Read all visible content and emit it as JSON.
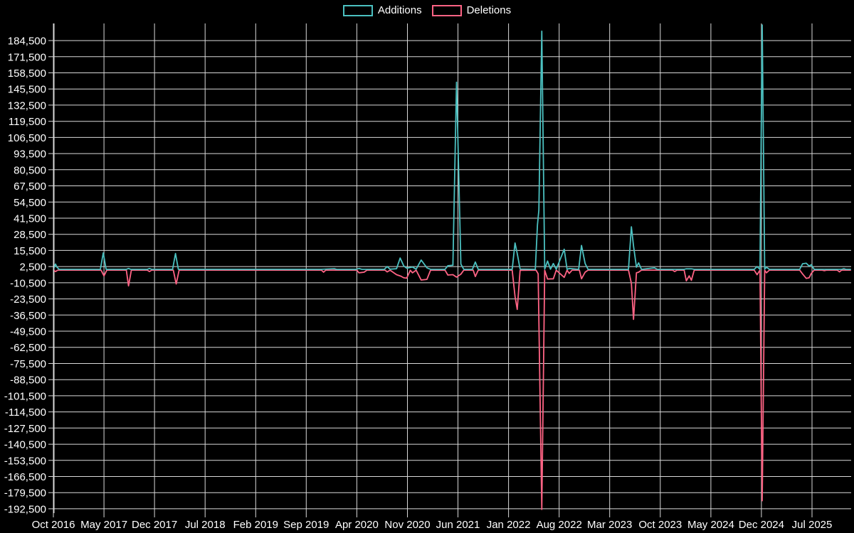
{
  "legend": {
    "items": [
      {
        "label": "Additions",
        "color": "#4bc0c0"
      },
      {
        "label": "Deletions",
        "color": "#ff6384"
      }
    ]
  },
  "chart_data": {
    "type": "line",
    "title": "",
    "xlabel": "",
    "ylabel": "",
    "background_color": "#000000",
    "grid_color": "#d9d9d9",
    "text_color": "#ffffff",
    "legend_position": "top-center",
    "grid": true,
    "x_axis": {
      "tick_labels": [
        "Oct 2016",
        "May 2017",
        "Dec 2017",
        "Jul 2018",
        "Feb 2019",
        "Sep 2019",
        "Apr 2020",
        "Nov 2020",
        "Jun 2021",
        "Jan 2022",
        "Aug 2022",
        "Mar 2023",
        "Oct 2023",
        "May 2024",
        "Dec 2024",
        "Jul 2025"
      ],
      "months_between_ticks": 7,
      "start_month": "Oct 2016",
      "total_months_shown": 110.4
    },
    "y_axis": {
      "tick_labels": [
        "184,500",
        "171,500",
        "158,500",
        "145,500",
        "132,500",
        "119,500",
        "106,500",
        "93,500",
        "80,500",
        "67,500",
        "54,500",
        "41,500",
        "28,500",
        "15,500",
        "2,500",
        "-10,500",
        "-23,500",
        "-36,500",
        "-49,500",
        "-62,500",
        "-75,500",
        "-88,500",
        "-101,500",
        "-114,500",
        "-127,500",
        "-140,500",
        "-153,500",
        "-166,500",
        "-179,500",
        "-192,500"
      ],
      "tick_step": 13000,
      "max_tick": 184500,
      "min_tick": -192500
    },
    "series": [
      {
        "name": "Additions",
        "color": "#4bc0c0",
        "points_format": "[months_since_oct_2016, lines_added]",
        "points": [
          [
            0,
            300
          ],
          [
            0.3,
            4500
          ],
          [
            0.5,
            2000
          ],
          [
            0.8,
            300
          ],
          [
            6.5,
            300
          ],
          [
            6.9,
            13500
          ],
          [
            7.3,
            300
          ],
          [
            10.1,
            300
          ],
          [
            10.4,
            1000
          ],
          [
            10.7,
            300
          ],
          [
            13.0,
            300
          ],
          [
            13.3,
            1000
          ],
          [
            13.6,
            300
          ],
          [
            16.5,
            300
          ],
          [
            16.9,
            13000
          ],
          [
            17.3,
            300
          ],
          [
            37.0,
            300
          ],
          [
            38.9,
            800
          ],
          [
            39.2,
            300
          ],
          [
            41.9,
            300
          ],
          [
            42.3,
            1000
          ],
          [
            42.7,
            300
          ],
          [
            45.8,
            300
          ],
          [
            46.2,
            2500
          ],
          [
            46.6,
            400
          ],
          [
            47.5,
            800
          ],
          [
            48.0,
            9400
          ],
          [
            48.5,
            3000
          ],
          [
            48.9,
            1200
          ],
          [
            49.7,
            2200
          ],
          [
            50.2,
            400
          ],
          [
            50.9,
            7800
          ],
          [
            51.7,
            1500
          ],
          [
            52.2,
            300
          ],
          [
            54.2,
            300
          ],
          [
            54.6,
            3200
          ],
          [
            55.3,
            3600
          ],
          [
            55.8,
            151000
          ],
          [
            56.4,
            4500
          ],
          [
            56.8,
            300
          ],
          [
            58.0,
            300
          ],
          [
            58.4,
            6200
          ],
          [
            58.8,
            300
          ],
          [
            63.5,
            300
          ],
          [
            63.9,
            21500
          ],
          [
            64.2,
            13000
          ],
          [
            64.6,
            500
          ],
          [
            66.7,
            300
          ],
          [
            67.0,
            36000
          ],
          [
            67.2,
            48000
          ],
          [
            67.6,
            192000
          ],
          [
            68.0,
            500
          ],
          [
            68.4,
            7000
          ],
          [
            68.8,
            400
          ],
          [
            69.2,
            5000
          ],
          [
            69.6,
            300
          ],
          [
            70.7,
            16500
          ],
          [
            71.1,
            300
          ],
          [
            71.4,
            1000
          ],
          [
            72.7,
            300
          ],
          [
            73.1,
            19500
          ],
          [
            73.6,
            5000
          ],
          [
            74.0,
            300
          ],
          [
            79.6,
            300
          ],
          [
            80.0,
            34500
          ],
          [
            80.3,
            19000
          ],
          [
            80.7,
            2000
          ],
          [
            81.0,
            5500
          ],
          [
            81.4,
            300
          ],
          [
            83.2,
            1500
          ],
          [
            83.6,
            300
          ],
          [
            87.3,
            300
          ],
          [
            87.6,
            700
          ],
          [
            88.3,
            700
          ],
          [
            88.7,
            300
          ],
          [
            97.0,
            300
          ],
          [
            97.4,
            2500
          ],
          [
            97.8,
            300
          ],
          [
            98.1,
            197000
          ],
          [
            98.45,
            400
          ],
          [
            98.7,
            2000
          ],
          [
            99.1,
            300
          ],
          [
            103.3,
            300
          ],
          [
            103.7,
            4800
          ],
          [
            104.2,
            5200
          ],
          [
            104.6,
            3000
          ],
          [
            104.9,
            4000
          ],
          [
            105.3,
            300
          ],
          [
            109.1,
            300
          ],
          [
            109.4,
            800
          ],
          [
            109.7,
            300
          ],
          [
            110.4,
            300
          ]
        ]
      },
      {
        "name": "Deletions",
        "color": "#ff6384",
        "points_format": "[months_since_oct_2016, lines_deleted_negative]",
        "points": [
          [
            0,
            -350
          ],
          [
            0.3,
            -1500
          ],
          [
            0.6,
            -350
          ],
          [
            6.6,
            -350
          ],
          [
            7.0,
            -5000
          ],
          [
            7.4,
            -350
          ],
          [
            10.1,
            -350
          ],
          [
            10.4,
            -13000
          ],
          [
            10.8,
            -350
          ],
          [
            13.0,
            -350
          ],
          [
            13.3,
            -1500
          ],
          [
            13.6,
            -350
          ],
          [
            16.6,
            -350
          ],
          [
            17.0,
            -11500
          ],
          [
            17.4,
            -350
          ],
          [
            37.1,
            -350
          ],
          [
            37.4,
            -2000
          ],
          [
            37.7,
            -350
          ],
          [
            42.0,
            -350
          ],
          [
            42.3,
            -2500
          ],
          [
            43.0,
            -2000
          ],
          [
            43.4,
            -350
          ],
          [
            45.9,
            -350
          ],
          [
            46.2,
            -1800
          ],
          [
            46.6,
            -400
          ],
          [
            47.5,
            -4000
          ],
          [
            48.1,
            -5200
          ],
          [
            48.5,
            -6500
          ],
          [
            48.9,
            -6800
          ],
          [
            49.4,
            -500
          ],
          [
            49.7,
            -2500
          ],
          [
            50.2,
            -400
          ],
          [
            50.9,
            -8300
          ],
          [
            51.7,
            -7800
          ],
          [
            52.2,
            -400
          ],
          [
            54.2,
            -350
          ],
          [
            54.6,
            -4300
          ],
          [
            55.3,
            -4000
          ],
          [
            55.8,
            -6000
          ],
          [
            56.4,
            -3600
          ],
          [
            56.8,
            -350
          ],
          [
            58.1,
            -350
          ],
          [
            58.4,
            -5500
          ],
          [
            58.8,
            -350
          ],
          [
            63.5,
            -350
          ],
          [
            63.9,
            -21500
          ],
          [
            64.2,
            -32000
          ],
          [
            64.6,
            -500
          ],
          [
            66.8,
            -350
          ],
          [
            67.1,
            -3300
          ],
          [
            67.6,
            -193000
          ],
          [
            68.0,
            -500
          ],
          [
            68.4,
            -7500
          ],
          [
            69.2,
            -7300
          ],
          [
            69.6,
            -400
          ],
          [
            70.7,
            -6200
          ],
          [
            71.1,
            -400
          ],
          [
            71.4,
            -3000
          ],
          [
            71.8,
            -350
          ],
          [
            72.8,
            -350
          ],
          [
            73.1,
            -7300
          ],
          [
            73.6,
            -2000
          ],
          [
            74.0,
            -350
          ],
          [
            79.6,
            -350
          ],
          [
            80.0,
            -11000
          ],
          [
            80.3,
            -40000
          ],
          [
            80.7,
            -2500
          ],
          [
            81.0,
            -2000
          ],
          [
            81.4,
            -350
          ],
          [
            85.7,
            -350
          ],
          [
            86.0,
            -1500
          ],
          [
            86.3,
            -350
          ],
          [
            87.3,
            -350
          ],
          [
            87.6,
            -9000
          ],
          [
            88.0,
            -5000
          ],
          [
            88.3,
            -8500
          ],
          [
            88.7,
            -350
          ],
          [
            97.0,
            -350
          ],
          [
            97.4,
            -4000
          ],
          [
            97.8,
            -350
          ],
          [
            98.1,
            -186000
          ],
          [
            98.45,
            -400
          ],
          [
            98.7,
            -2500
          ],
          [
            99.1,
            -350
          ],
          [
            103.3,
            -350
          ],
          [
            103.7,
            -3500
          ],
          [
            104.2,
            -7000
          ],
          [
            104.6,
            -6500
          ],
          [
            104.9,
            -3000
          ],
          [
            105.3,
            -350
          ],
          [
            106.4,
            -350
          ],
          [
            106.7,
            -800
          ],
          [
            107.0,
            -350
          ],
          [
            108.5,
            -350
          ],
          [
            108.8,
            -1800
          ],
          [
            109.1,
            -350
          ],
          [
            110.4,
            -350
          ]
        ]
      }
    ]
  }
}
